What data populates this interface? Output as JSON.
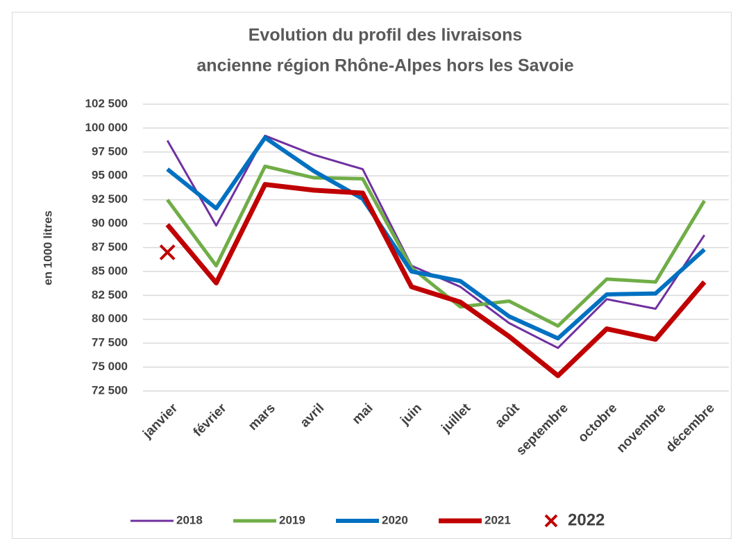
{
  "chart_data": {
    "type": "line",
    "title": [
      "Evolution du profil des livraisons",
      "ancienne région Rhône-Alpes hors les Savoie"
    ],
    "y_label": "en 1000 litres",
    "categories": [
      "janvier",
      "février",
      "mars",
      "avril",
      "mai",
      "juin",
      "juillet",
      "août",
      "septembre",
      "octobre",
      "novembre",
      "décembre"
    ],
    "series": [
      {
        "name": "2018",
        "color": "#7030a0",
        "width": 3,
        "values": [
          98700,
          89800,
          99200,
          97200,
          95700,
          85600,
          83400,
          79600,
          77000,
          82100,
          81100,
          88800
        ]
      },
      {
        "name": "2019",
        "color": "#70ad47",
        "width": 5,
        "values": [
          92500,
          85600,
          96000,
          94800,
          94700,
          85400,
          81300,
          81900,
          79300,
          84200,
          83900,
          92400
        ]
      },
      {
        "name": "2020",
        "color": "#0070c0",
        "width": 6,
        "values": [
          95700,
          91600,
          99000,
          95500,
          92600,
          85000,
          84000,
          80300,
          78000,
          82600,
          82700,
          87300
        ]
      },
      {
        "name": "2021",
        "color": "#c00000",
        "width": 7,
        "values": [
          89900,
          83800,
          94100,
          93500,
          93200,
          83400,
          81800,
          78200,
          74100,
          79000,
          77900,
          83900
        ]
      },
      {
        "name": "2022",
        "color": "#c00000",
        "marker": "x",
        "values": [
          87000,
          null,
          null,
          null,
          null,
          null,
          null,
          null,
          null,
          null,
          null,
          null
        ]
      }
    ],
    "ylim": [
      72500,
      102500
    ],
    "yticks": [
      {
        "value": 72500,
        "label": "72 500"
      },
      {
        "value": 75000,
        "label": "75 000"
      },
      {
        "value": 77500,
        "label": "77 500"
      },
      {
        "value": 80000,
        "label": "80 000"
      },
      {
        "value": 82500,
        "label": "82 500"
      },
      {
        "value": 85000,
        "label": "85 000"
      },
      {
        "value": 87500,
        "label": "87 500"
      },
      {
        "value": 90000,
        "label": "90 000"
      },
      {
        "value": 92500,
        "label": "92 500"
      },
      {
        "value": 95000,
        "label": "95 000"
      },
      {
        "value": 97500,
        "label": "97 500"
      },
      {
        "value": 100000,
        "label": "100 000"
      },
      {
        "value": 102500,
        "label": "102 500"
      }
    ],
    "grid": true,
    "legend": "bottom"
  }
}
